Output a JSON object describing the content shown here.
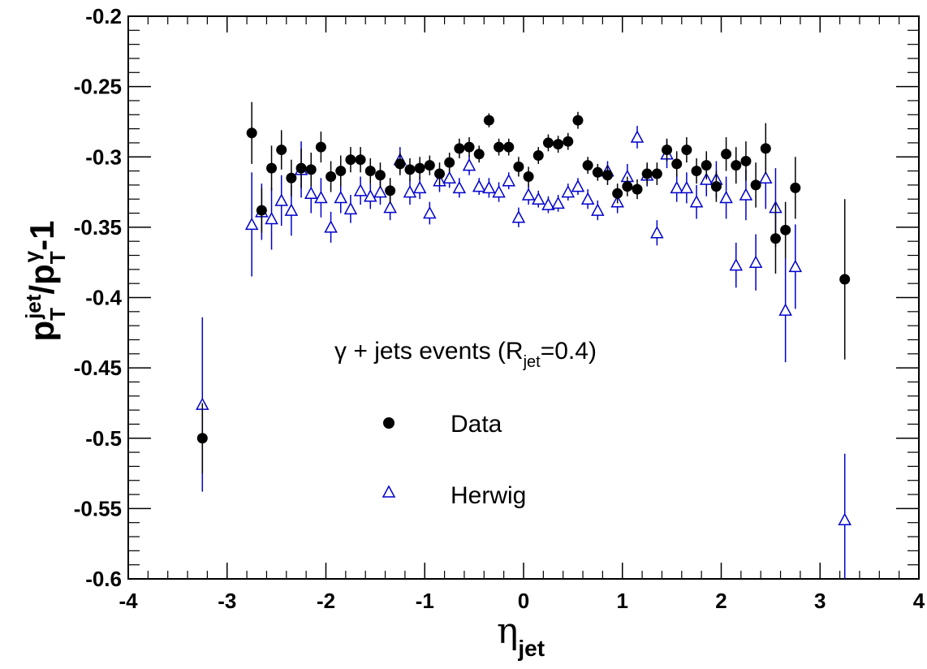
{
  "chart_data": {
    "type": "scatter",
    "title": "",
    "x_axis": {
      "label_main": "η",
      "label_sub": "jet",
      "range": [
        -4,
        4
      ],
      "major_ticks": [
        -4,
        -3,
        -2,
        -1,
        0,
        1,
        2,
        3,
        4
      ],
      "tick_labels": [
        "-4",
        "-3",
        "-2",
        "-1",
        "0",
        "1",
        "2",
        "3",
        "4"
      ]
    },
    "y_axis": {
      "label_parts": {
        "p1": "p",
        "sup1": "jet",
        "sub1": "T",
        "slash": "/",
        "p2": "p",
        "sup2": "γ",
        "sub2": "T",
        "tail": "-1"
      },
      "range": [
        -0.6,
        -0.2
      ],
      "major_ticks": [
        -0.6,
        -0.55,
        -0.5,
        -0.45,
        -0.4,
        -0.35,
        -0.3,
        -0.25,
        -0.2
      ],
      "tick_labels": [
        "-0.6",
        "-0.55",
        "-0.5",
        "-0.45",
        "-0.4",
        "-0.35",
        "-0.3",
        "-0.25",
        "-0.2"
      ]
    },
    "annotation": {
      "prefix": "γ + jets events (R",
      "sub": "jet",
      "suffix": "=0.4)"
    },
    "grid": false,
    "legend_position": "center",
    "series": [
      {
        "name": "Data",
        "marker": "filled-circle",
        "color": "#000000",
        "x": [
          -3.25,
          -2.75,
          -2.65,
          -2.55,
          -2.45,
          -2.35,
          -2.25,
          -2.15,
          -2.05,
          -1.95,
          -1.85,
          -1.75,
          -1.65,
          -1.55,
          -1.45,
          -1.35,
          -1.25,
          -1.15,
          -1.05,
          -0.95,
          -0.85,
          -0.75,
          -0.65,
          -0.55,
          -0.45,
          -0.35,
          -0.25,
          -0.15,
          -0.05,
          0.05,
          0.15,
          0.25,
          0.35,
          0.45,
          0.55,
          0.65,
          0.75,
          0.85,
          0.95,
          1.05,
          1.15,
          1.25,
          1.35,
          1.45,
          1.55,
          1.65,
          1.75,
          1.85,
          1.95,
          2.05,
          2.15,
          2.25,
          2.35,
          2.45,
          2.55,
          2.65,
          2.75,
          3.25
        ],
        "y": [
          -0.5,
          -0.283,
          -0.338,
          -0.308,
          -0.295,
          -0.315,
          -0.308,
          -0.309,
          -0.293,
          -0.314,
          -0.31,
          -0.302,
          -0.302,
          -0.31,
          -0.313,
          -0.324,
          -0.305,
          -0.309,
          -0.308,
          -0.306,
          -0.312,
          -0.304,
          -0.294,
          -0.293,
          -0.298,
          -0.274,
          -0.293,
          -0.293,
          -0.307,
          -0.314,
          -0.299,
          -0.29,
          -0.291,
          -0.289,
          -0.274,
          -0.306,
          -0.311,
          -0.313,
          -0.326,
          -0.321,
          -0.323,
          -0.312,
          -0.312,
          -0.295,
          -0.305,
          -0.295,
          -0.31,
          -0.306,
          -0.321,
          -0.298,
          -0.306,
          -0.303,
          -0.32,
          -0.294,
          -0.358,
          -0.352,
          -0.322,
          -0.387
        ],
        "err": [
          0.025,
          0.022,
          0.016,
          0.016,
          0.014,
          0.013,
          0.014,
          0.012,
          0.011,
          0.011,
          0.011,
          0.009,
          0.009,
          0.009,
          0.009,
          0.009,
          0.008,
          0.008,
          0.008,
          0.007,
          0.008,
          0.007,
          0.007,
          0.007,
          0.006,
          0.005,
          0.006,
          0.006,
          0.007,
          0.007,
          0.006,
          0.006,
          0.006,
          0.006,
          0.006,
          0.006,
          0.006,
          0.007,
          0.007,
          0.007,
          0.007,
          0.008,
          0.008,
          0.008,
          0.009,
          0.009,
          0.009,
          0.01,
          0.011,
          0.012,
          0.013,
          0.014,
          0.016,
          0.018,
          0.025,
          0.02,
          0.022,
          0.057
        ]
      },
      {
        "name": "Herwig",
        "marker": "open-triangle",
        "color": "#0000cc",
        "x": [
          -3.25,
          -2.75,
          -2.65,
          -2.55,
          -2.45,
          -2.35,
          -2.25,
          -2.15,
          -2.05,
          -1.95,
          -1.85,
          -1.75,
          -1.65,
          -1.55,
          -1.45,
          -1.35,
          -1.25,
          -1.15,
          -1.05,
          -0.95,
          -0.85,
          -0.75,
          -0.65,
          -0.55,
          -0.45,
          -0.35,
          -0.25,
          -0.15,
          -0.05,
          0.05,
          0.15,
          0.25,
          0.35,
          0.45,
          0.55,
          0.65,
          0.75,
          0.85,
          0.95,
          1.05,
          1.15,
          1.25,
          1.35,
          1.45,
          1.55,
          1.65,
          1.75,
          1.85,
          1.95,
          2.05,
          2.15,
          2.25,
          2.35,
          2.45,
          2.55,
          2.65,
          2.75,
          3.25
        ],
        "y": [
          -0.476,
          -0.348,
          -0.339,
          -0.344,
          -0.331,
          -0.338,
          -0.309,
          -0.326,
          -0.329,
          -0.35,
          -0.329,
          -0.337,
          -0.324,
          -0.328,
          -0.325,
          -0.336,
          -0.302,
          -0.325,
          -0.322,
          -0.34,
          -0.317,
          -0.315,
          -0.322,
          -0.306,
          -0.321,
          -0.322,
          -0.325,
          -0.317,
          -0.343,
          -0.327,
          -0.33,
          -0.334,
          -0.333,
          -0.325,
          -0.321,
          -0.33,
          -0.338,
          -0.31,
          -0.332,
          -0.314,
          -0.286,
          -0.313,
          -0.354,
          -0.298,
          -0.322,
          -0.322,
          -0.332,
          -0.316,
          -0.316,
          -0.329,
          -0.377,
          -0.327,
          -0.375,
          -0.315,
          -0.336,
          -0.409,
          -0.378,
          -0.558
        ],
        "err": [
          0.062,
          0.037,
          0.02,
          0.022,
          0.018,
          0.018,
          0.02,
          0.014,
          0.014,
          0.011,
          0.011,
          0.01,
          0.01,
          0.009,
          0.009,
          0.009,
          0.009,
          0.009,
          0.008,
          0.008,
          0.008,
          0.007,
          0.007,
          0.007,
          0.006,
          0.007,
          0.007,
          0.006,
          0.007,
          0.007,
          0.006,
          0.006,
          0.006,
          0.006,
          0.006,
          0.007,
          0.007,
          0.007,
          0.008,
          0.009,
          0.008,
          0.008,
          0.009,
          0.01,
          0.01,
          0.011,
          0.012,
          0.012,
          0.013,
          0.015,
          0.016,
          0.018,
          0.02,
          0.022,
          0.028,
          0.037,
          0.03,
          0.047
        ]
      }
    ]
  }
}
